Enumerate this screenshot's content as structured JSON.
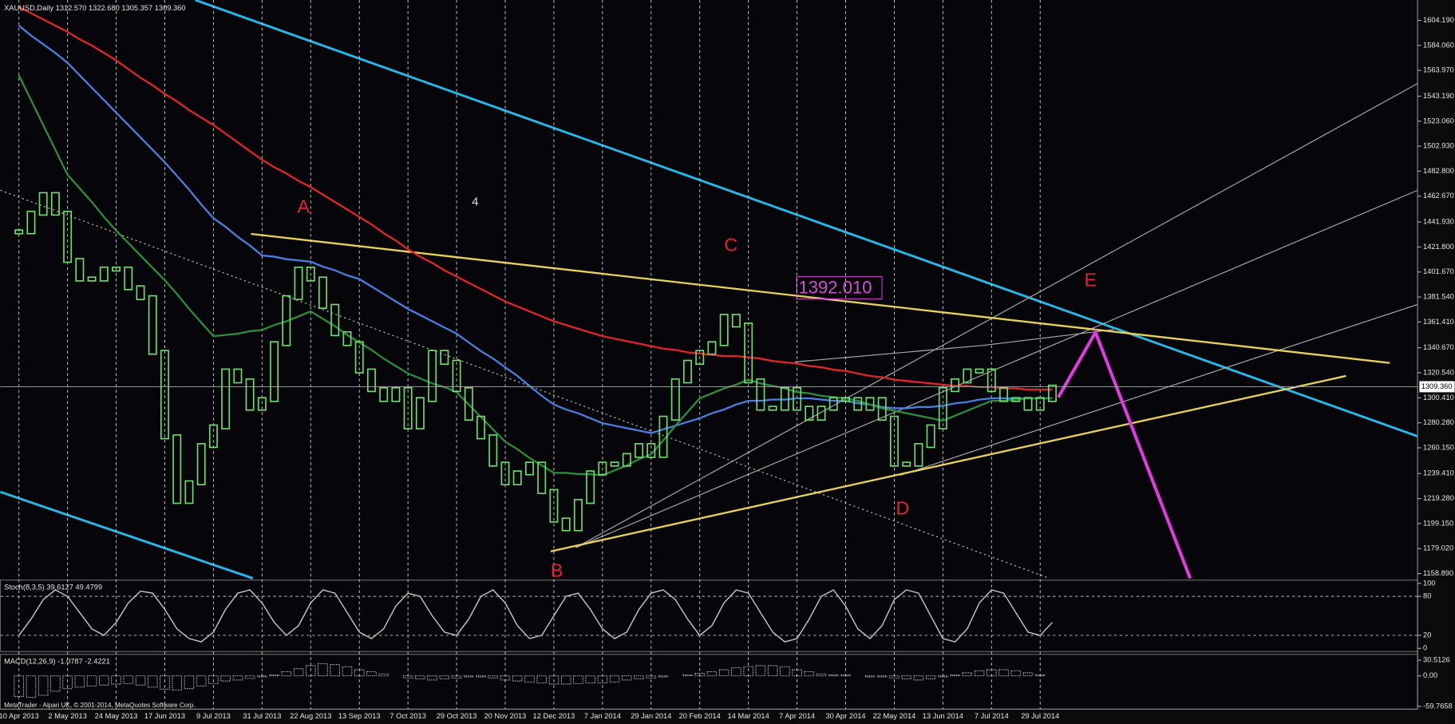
{
  "header": "XAUUSD,Daily 1312.570 1322.680 1305.357 1309.360",
  "footer": "MetaTrader - Alpari UK, © 2001-2014, MetaQuotes Software Corp.",
  "annotations": [
    "A",
    "B",
    "C",
    "D",
    "E",
    "4",
    "1392.010"
  ],
  "chart_data": [
    {
      "type": "candlestick",
      "categories": [
        "10 Apr 2013",
        null,
        null,
        null,
        "2 May 2013",
        null,
        null,
        null,
        "24 May 2013",
        null,
        null,
        null,
        "17 Jun 2013",
        null,
        null,
        null,
        "9 Jul 2013",
        null,
        null,
        null,
        "31 Jul 2013",
        null,
        null,
        null,
        "22 Aug 2013",
        null,
        null,
        null,
        "13 Sep 2013",
        null,
        null,
        null,
        "7 Oct 2013",
        null,
        null,
        null,
        "29 Oct 2013",
        null,
        null,
        null,
        "20 Nov 2013",
        null,
        null,
        null,
        "12 Dec 2013",
        null,
        null,
        null,
        "7 Jan 2014",
        null,
        null,
        null,
        "29 Jan 2014",
        null,
        null,
        null,
        "20 Feb 2014",
        null,
        null,
        null,
        "14 Mar 2014",
        null,
        null,
        null,
        "7 Apr 2014",
        null,
        null,
        null,
        "30 Apr 2014",
        null,
        null,
        null,
        "22 May 2014",
        null,
        null,
        null,
        "13 Jun 2014",
        null,
        null,
        null,
        "7 Jul 2014",
        null,
        null,
        null,
        "29 Jul 2014",
        null
      ],
      "values": [
        1434,
        1449,
        1464,
        1449,
        1411,
        1396,
        1396,
        1404,
        1404,
        1389,
        1381,
        1337,
        1269,
        1217,
        1232,
        1262,
        1277,
        1322,
        1314,
        1292,
        1299,
        1344,
        1381,
        1404,
        1396,
        1374,
        1352,
        1344,
        1322,
        1307,
        1299,
        1307,
        1277,
        1299,
        1337,
        1329,
        1307,
        1284,
        1269,
        1247,
        1232,
        1240,
        1247,
        1225,
        1202,
        1195,
        1217,
        1240,
        1247,
        1247,
        1254,
        1262,
        1254,
        1284,
        1314,
        1329,
        1337,
        1344,
        1366,
        1359,
        1314,
        1292,
        1292,
        1307,
        1292,
        1284,
        1292,
        1299,
        1299,
        1292,
        1299,
        1284,
        1247,
        1247,
        1262,
        1277,
        1307,
        1314,
        1322,
        1322,
        1307,
        1299,
        1299,
        1292,
        1299,
        1309
      ],
      "color": "#6de06d",
      "series": [
        {
          "color": "#e0252b",
          "values": [
            1615,
            1610,
            1605,
            1600,
            1595,
            1589,
            1584,
            1578,
            1572,
            1565,
            1558,
            1552,
            1545,
            1539,
            1532,
            1526,
            1520,
            1513,
            1506,
            1499,
            1492,
            1486,
            1481,
            1475,
            1470,
            1464,
            1458,
            1452,
            1446,
            1440,
            1433,
            1427,
            1420,
            1414,
            1409,
            1403,
            1398,
            1393,
            1388,
            1383,
            1378,
            1374,
            1370,
            1366,
            1362,
            1359,
            1356,
            1353,
            1350,
            1348,
            1346,
            1344,
            1342,
            1340,
            1339,
            1337,
            1336,
            1335,
            1334,
            1334,
            1333,
            1332,
            1330,
            1329,
            1328,
            1326,
            1325,
            1323,
            1322,
            1320,
            1318,
            1317,
            1315,
            1314,
            1313,
            1312,
            1311,
            1310,
            1310,
            1309,
            1309,
            1308,
            1308,
            1307,
            1307,
            1307
          ]
        },
        {
          "color": "#4a7de0",
          "values": [
            1600,
            1592,
            1585,
            1578,
            1570,
            1560,
            1550,
            1540,
            1530,
            1520,
            1510,
            1500,
            1490,
            1479,
            1468,
            1456,
            1445,
            1438,
            1430,
            1423,
            1415,
            1414,
            1412,
            1411,
            1410,
            1406,
            1403,
            1399,
            1396,
            1390,
            1384,
            1378,
            1372,
            1367,
            1362,
            1357,
            1352,
            1345,
            1338,
            1332,
            1325,
            1318,
            1310,
            1302,
            1295,
            1291,
            1288,
            1284,
            1280,
            1278,
            1276,
            1274,
            1272,
            1275,
            1278,
            1281,
            1284,
            1288,
            1291,
            1295,
            1298,
            1298,
            1299,
            1299,
            1300,
            1300,
            1299,
            1298,
            1298,
            1296,
            1295,
            1293,
            1292,
            1292,
            1293,
            1293,
            1294,
            1296,
            1297,
            1299,
            1300,
            1300,
            1300,
            1300,
            1300,
            1300
          ]
        },
        {
          "color": "#2e8b3e",
          "values": [
            1560,
            1540,
            1520,
            1500,
            1480,
            1469,
            1458,
            1446,
            1435,
            1425,
            1415,
            1405,
            1395,
            1384,
            1372,
            1361,
            1350,
            1351,
            1352,
            1354,
            1355,
            1359,
            1362,
            1366,
            1370,
            1364,
            1358,
            1351,
            1345,
            1339,
            1332,
            1326,
            1320,
            1316,
            1312,
            1309,
            1305,
            1295,
            1285,
            1275,
            1265,
            1259,
            1252,
            1246,
            1240,
            1240,
            1239,
            1239,
            1238,
            1242,
            1246,
            1251,
            1255,
            1266,
            1278,
            1289,
            1300,
            1304,
            1308,
            1311,
            1315,
            1312,
            1310,
            1308,
            1305,
            1304,
            1302,
            1301,
            1300,
            1298,
            1295,
            1292,
            1290,
            1288,
            1286,
            1284,
            1282,
            1286,
            1290,
            1294,
            1298,
            1298,
            1299,
            1300,
            1300,
            1300
          ]
        }
      ],
      "current_price": {
        "value": 1309.36,
        "label": "1309.360"
      },
      "ylim": [
        1155.15,
        1620.6
      ],
      "yticks": [
        {
          "value": 1604.19,
          "label": "1604.190"
        },
        {
          "value": 1584.06,
          "label": "1584.060"
        },
        {
          "value": 1563.97,
          "label": "1563.970"
        },
        {
          "value": 1543.19,
          "label": "1543.190"
        },
        {
          "value": 1523.06,
          "label": "1523.060"
        },
        {
          "value": 1502.93,
          "label": "1502.930"
        },
        {
          "value": 1482.8,
          "label": "1482.800"
        },
        {
          "value": 1462.67,
          "label": "1462.670"
        },
        {
          "value": 1441.93,
          "label": "1441.930"
        },
        {
          "value": 1421.8,
          "label": "1421.800"
        },
        {
          "value": 1401.67,
          "label": "1401.670"
        },
        {
          "value": 1381.54,
          "label": "1381.540"
        },
        {
          "value": 1361.41,
          "label": "1361.410"
        },
        {
          "value": 1340.67,
          "label": "1340.670"
        },
        {
          "value": 1320.54,
          "label": "1320.540"
        },
        {
          "value": 1300.41,
          "label": "1300.410"
        },
        {
          "value": 1280.28,
          "label": "1280.280"
        },
        {
          "value": 1260.15,
          "label": "1260.150"
        },
        {
          "value": 1239.41,
          "label": "1239.410"
        },
        {
          "value": 1219.28,
          "label": "1219.280"
        },
        {
          "value": 1199.15,
          "label": "1199.150"
        },
        {
          "value": 1179.02,
          "label": "1179.020"
        },
        {
          "value": 1158.89,
          "label": "1158.890"
        }
      ],
      "grid": true
    },
    {
      "type": "line",
      "title": "Stoch(8,3,5) 39.6127 49.4799",
      "color": "#c8c8c8",
      "values": [
        20,
        45,
        75,
        90,
        80,
        55,
        30,
        20,
        40,
        70,
        88,
        85,
        60,
        30,
        15,
        10,
        25,
        60,
        85,
        90,
        70,
        40,
        20,
        35,
        70,
        90,
        85,
        55,
        25,
        15,
        30,
        65,
        85,
        80,
        50,
        25,
        20,
        45,
        80,
        90,
        70,
        35,
        15,
        20,
        50,
        80,
        85,
        60,
        30,
        15,
        25,
        60,
        85,
        90,
        75,
        45,
        20,
        35,
        70,
        90,
        85,
        55,
        25,
        10,
        15,
        45,
        80,
        90,
        65,
        30,
        15,
        35,
        75,
        90,
        85,
        50,
        15,
        10,
        30,
        70,
        90,
        85,
        55,
        25,
        20,
        40
      ],
      "ylim": [
        -5,
        105
      ],
      "yticks": [
        0,
        20,
        80,
        100
      ],
      "levels": [
        20,
        80
      ]
    },
    {
      "type": "bar",
      "title": "MACD(12,26,9) -1.0787 -2.4221",
      "color": "#e8e8e8",
      "values": [
        -40,
        -42,
        -38,
        -30,
        -25,
        -22,
        -20,
        -18,
        -16,
        -15,
        -18,
        -22,
        -26,
        -28,
        -25,
        -20,
        -15,
        -10,
        -8,
        -5,
        -2,
        2,
        8,
        14,
        20,
        24,
        22,
        18,
        12,
        8,
        4,
        0,
        -4,
        -6,
        -8,
        -6,
        -4,
        -2,
        -2,
        -4,
        -8,
        -10,
        -12,
        -14,
        -16,
        -16,
        -15,
        -14,
        -14,
        -12,
        -8,
        -6,
        -4,
        -2,
        0,
        2,
        5,
        8,
        12,
        16,
        18,
        20,
        20,
        18,
        12,
        8,
        4,
        2,
        2,
        0,
        -2,
        -2,
        -4,
        -6,
        -8,
        -6,
        -2,
        2,
        6,
        10,
        12,
        12,
        10,
        6,
        2,
        0
      ],
      "ylim": [
        -65,
        42
      ],
      "yticks": [
        30.5126,
        {
          "value": 0,
          "label": "0.00"
        },
        -59.7658
      ]
    }
  ]
}
